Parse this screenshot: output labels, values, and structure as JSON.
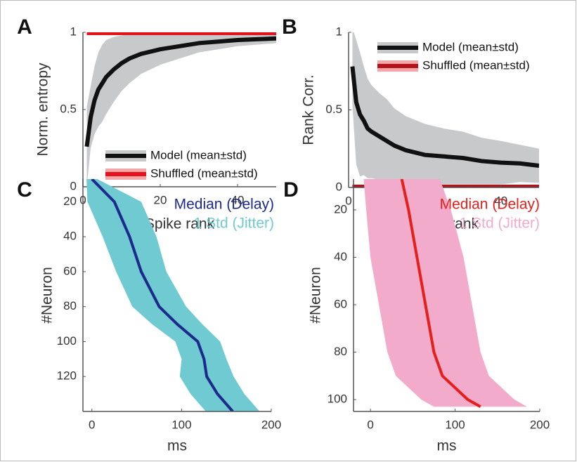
{
  "chart_data": [
    {
      "type": "line",
      "label": "A",
      "xlabel": "Spike rank",
      "ylabel": "Norm. entropy",
      "xlim": [
        0,
        50
      ],
      "ylim": [
        0,
        1
      ],
      "xticks": [
        0,
        20,
        40
      ],
      "yticks": [
        0,
        0.5,
        1
      ],
      "legend": "lower-right",
      "series": [
        {
          "name": "Model (mean±std)",
          "color": "#111111",
          "band_color": "#c8c9cb",
          "x": [
            1,
            2,
            3,
            4,
            5,
            6,
            8,
            10,
            12,
            15,
            20,
            25,
            30,
            35,
            40,
            45,
            50
          ],
          "values": [
            0.26,
            0.45,
            0.56,
            0.63,
            0.67,
            0.71,
            0.76,
            0.8,
            0.83,
            0.86,
            0.89,
            0.91,
            0.93,
            0.94,
            0.95,
            0.955,
            0.96
          ],
          "std": [
            0.26,
            0.2,
            0.22,
            0.24,
            0.25,
            0.24,
            0.21,
            0.18,
            0.16,
            0.13,
            0.1,
            0.08,
            0.06,
            0.05,
            0.04,
            0.035,
            0.03
          ]
        },
        {
          "name": "Shuffled (mean±std)",
          "color": "#e3121b",
          "band_color": "#f4a6a8",
          "x": [
            1,
            50
          ],
          "values": [
            1,
            1
          ]
        }
      ]
    },
    {
      "type": "line",
      "label": "B",
      "xlabel": "Spike rank",
      "ylabel": "Rank Corr.",
      "xlim": [
        0,
        50
      ],
      "ylim": [
        0,
        1
      ],
      "xticks": [
        0,
        20,
        40
      ],
      "yticks": [
        0,
        0.5,
        1
      ],
      "legend": "upper-right",
      "series": [
        {
          "name": "Model (mean±std)",
          "color": "#111111",
          "band_color": "#c8c9cb",
          "x": [
            1,
            2,
            3,
            4,
            5,
            6,
            8,
            10,
            12,
            15,
            20,
            25,
            30,
            35,
            40,
            45,
            50
          ],
          "values": [
            0.78,
            0.55,
            0.47,
            0.43,
            0.38,
            0.36,
            0.33,
            0.3,
            0.27,
            0.24,
            0.21,
            0.2,
            0.19,
            0.17,
            0.16,
            0.155,
            0.14
          ],
          "std": [
            0.25,
            0.4,
            0.4,
            0.35,
            0.32,
            0.3,
            0.28,
            0.27,
            0.24,
            0.22,
            0.2,
            0.18,
            0.17,
            0.15,
            0.14,
            0.12,
            0.11
          ]
        },
        {
          "name": "Shuffled (mean±std)",
          "color": "#b5121b",
          "band_color": "#f4a6a8",
          "x": [
            1,
            50
          ],
          "values": [
            0,
            0
          ]
        }
      ]
    },
    {
      "type": "line",
      "label": "C",
      "xlabel": "ms",
      "ylabel": "#Neuron",
      "xlim": [
        -10,
        200
      ],
      "ylim": [
        7,
        140
      ],
      "y_reversed": true,
      "xticks": [
        0,
        100,
        200
      ],
      "yticks": [
        20,
        40,
        60,
        80,
        100,
        120
      ],
      "legend": "upper-right",
      "series": [
        {
          "name": "Median (Delay)",
          "band_name": "1 Std (Jitter)",
          "color": "#1c2a8c",
          "band_color": "#6fcad1",
          "y": [
            7,
            20,
            40,
            60,
            80,
            90,
            100,
            110,
            120,
            130,
            140
          ],
          "values": [
            0,
            25,
            42,
            55,
            75,
            95,
            118,
            125,
            128,
            140,
            157
          ],
          "std": [
            6,
            30,
            30,
            28,
            30,
            28,
            25,
            25,
            30,
            30,
            30
          ]
        }
      ]
    },
    {
      "type": "line",
      "label": "D",
      "xlabel": "ms",
      "ylabel": "#Neuron",
      "xlim": [
        -20,
        200
      ],
      "ylim": [
        7,
        105
      ],
      "y_reversed": true,
      "xticks": [
        0,
        100,
        200
      ],
      "yticks": [
        20,
        40,
        60,
        80,
        100
      ],
      "legend": "upper-right",
      "series": [
        {
          "name": "Median (Delay)",
          "band_name": "1 Std (Jitter)",
          "color": "#e3201b",
          "band_color": "#f2abcb",
          "y": [
            7,
            20,
            40,
            60,
            80,
            90,
            100,
            103
          ],
          "values": [
            37,
            45,
            55,
            65,
            75,
            85,
            115,
            130
          ],
          "std": [
            45,
            50,
            55,
            55,
            55,
            55,
            55,
            55
          ]
        }
      ]
    }
  ]
}
